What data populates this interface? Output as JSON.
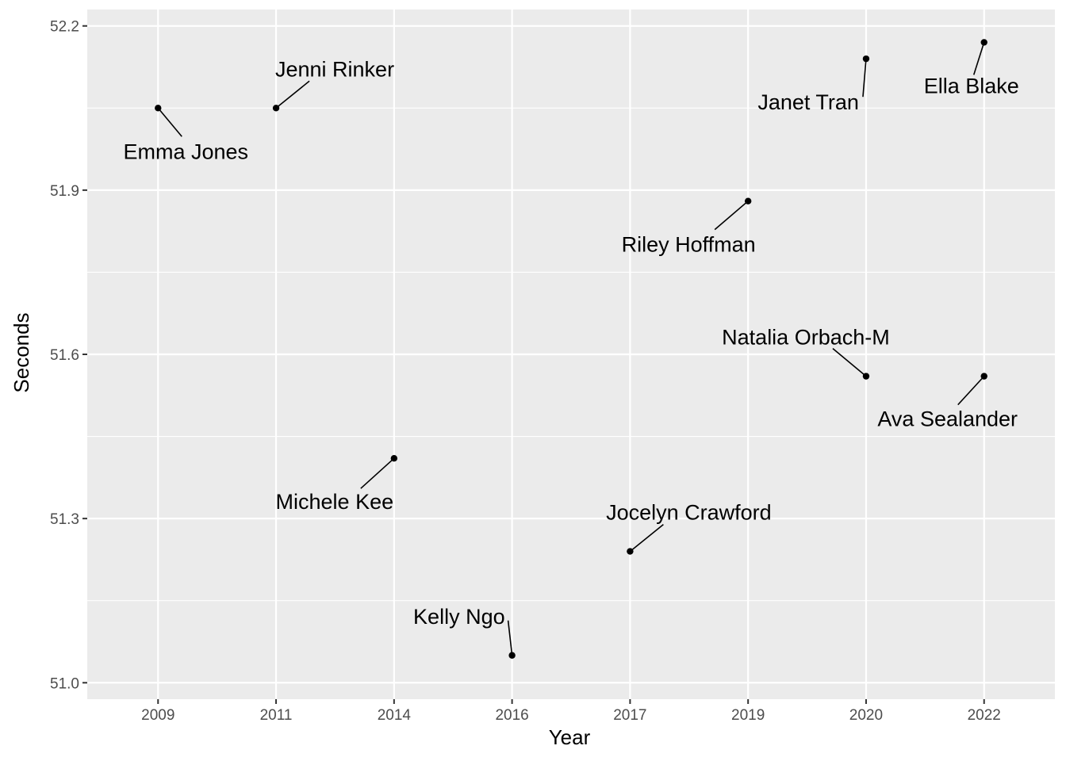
{
  "chart_data": {
    "type": "scatter",
    "xlabel": "Year",
    "ylabel": "Seconds",
    "x_categories": [
      "2009",
      "2011",
      "2014",
      "2016",
      "2017",
      "2019",
      "2020",
      "2022"
    ],
    "ylim": [
      50.97,
      52.23
    ],
    "y_ticks": [
      51.0,
      51.3,
      51.6,
      51.9,
      52.2
    ],
    "y_tick_labels": [
      "51.0",
      "51.3",
      "51.6",
      "51.9",
      "52.2"
    ],
    "grid": true,
    "legend": "none",
    "points": [
      {
        "year": "2009",
        "seconds": 52.05,
        "label": "Emma Jones"
      },
      {
        "year": "2011",
        "seconds": 52.05,
        "label": "Jenni Rinker"
      },
      {
        "year": "2014",
        "seconds": 51.41,
        "label": "Michele Kee"
      },
      {
        "year": "2016",
        "seconds": 51.05,
        "label": "Kelly Ngo"
      },
      {
        "year": "2017",
        "seconds": 51.24,
        "label": "Jocelyn Crawford"
      },
      {
        "year": "2019",
        "seconds": 51.88,
        "label": "Riley Hoffman"
      },
      {
        "year": "2020",
        "seconds": 52.14,
        "label": "Janet Tran"
      },
      {
        "year": "2020",
        "seconds": 51.56,
        "label": "Natalia Orbach-M"
      },
      {
        "year": "2022",
        "seconds": 52.17,
        "label": "Ella Blake"
      },
      {
        "year": "2022",
        "seconds": 51.56,
        "label": "Ava Sealander"
      }
    ]
  },
  "colors": {
    "panel_background": "#ebebeb",
    "grid_major": "#ffffff",
    "point": "#000000",
    "tick_label": "#4d4d4d"
  }
}
